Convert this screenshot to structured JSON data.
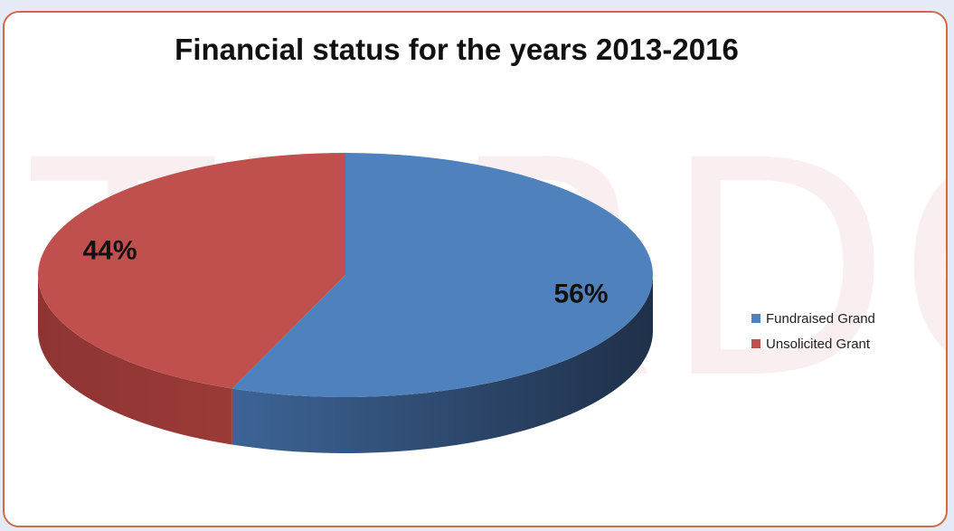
{
  "chart_data": {
    "type": "pie",
    "title": "Financial status for the years 2013-2016",
    "series": [
      {
        "name": "Fundraised Grand",
        "value": 56,
        "label": "56%",
        "color": "#4f81bd"
      },
      {
        "name": "Unsolicited Grant",
        "value": 44,
        "label": "44%",
        "color": "#c0504d"
      }
    ],
    "legend_position": "right",
    "style": "3d-pie"
  },
  "watermark": "THRDC"
}
